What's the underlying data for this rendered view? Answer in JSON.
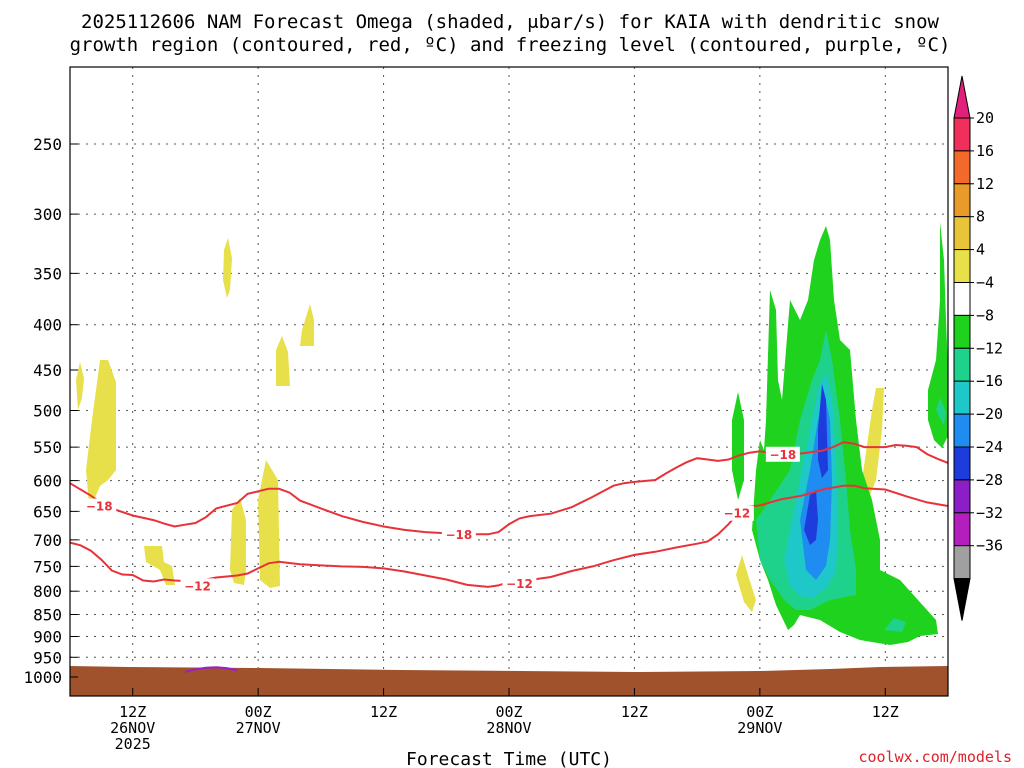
{
  "title": {
    "line1": "2025112606 NAM Forecast Omega (shaded, μbar/s) for KAIA with dendritic snow",
    "line2": "growth region (contoured, red, ºC) and freezing level (contoured, purple, ºC)"
  },
  "credit": "coolwx.com/models",
  "chart_data": {
    "type": "heatmap",
    "title": "2025112606 NAM Forecast Omega (shaded, μbar/s) for KAIA with dendritic snow growth region (contoured, red, ºC) and freezing level (contoured, purple, ºC)",
    "xlabel": "Forecast Time (UTC)",
    "ylabel": "",
    "y_scale": "log-pressure, inverted",
    "ylim": [
      1000,
      200
    ],
    "y_ticks": [
      250,
      300,
      350,
      400,
      450,
      500,
      550,
      600,
      650,
      700,
      750,
      800,
      850,
      900,
      950,
      1000
    ],
    "x_hours_range": [
      0,
      84
    ],
    "x_ticks": [
      {
        "hour": 6,
        "lines": [
          "12Z",
          "26NOV",
          "2025"
        ]
      },
      {
        "hour": 18,
        "lines": [
          "00Z",
          "27NOV"
        ]
      },
      {
        "hour": 30,
        "lines": [
          "12Z"
        ]
      },
      {
        "hour": 42,
        "lines": [
          "00Z",
          "28NOV"
        ]
      },
      {
        "hour": 54,
        "lines": [
          "12Z"
        ]
      },
      {
        "hour": 66,
        "lines": [
          "00Z",
          "29NOV"
        ]
      },
      {
        "hour": 78,
        "lines": [
          "12Z"
        ]
      }
    ],
    "grid": true,
    "colorbar": {
      "labels": [
        "20",
        "16",
        "12",
        "8",
        "4",
        "−4",
        "−8",
        "−12",
        "−16",
        "−20",
        "−24",
        "−28",
        "−32",
        "−36"
      ],
      "colors": [
        "#f0305a",
        "#f26a2a",
        "#e89a2a",
        "#e8c43a",
        "#e8e04a",
        "#ffffff",
        "#1ed21e",
        "#1ed28c",
        "#1ec8c8",
        "#1e8cf0",
        "#1e3cdc",
        "#8c1ec8",
        "#b41ebe",
        "#a0a0a0"
      ],
      "top_arrow_color": "#e0207a",
      "bottom_arrow_color": "#000000"
    },
    "contours": [
      {
        "name": "-18",
        "color": "#e8323a",
        "points": [
          [
            0,
            604
          ],
          [
            2,
            624
          ],
          [
            3,
            636
          ],
          [
            4,
            645
          ],
          [
            6,
            657
          ],
          [
            8,
            665
          ],
          [
            9,
            671
          ],
          [
            10,
            676
          ],
          [
            11,
            673
          ],
          [
            12,
            670
          ],
          [
            13,
            660
          ],
          [
            14,
            645
          ],
          [
            16,
            636
          ],
          [
            17,
            621
          ],
          [
            18,
            617
          ],
          [
            19,
            613
          ],
          [
            20,
            613
          ],
          [
            21,
            619
          ],
          [
            22,
            632
          ],
          [
            24,
            645
          ],
          [
            26,
            658
          ],
          [
            28,
            668
          ],
          [
            30,
            676
          ],
          [
            32,
            682
          ],
          [
            34,
            686
          ],
          [
            36,
            688
          ],
          [
            38,
            690
          ],
          [
            40,
            690
          ],
          [
            41,
            686
          ],
          [
            42,
            672
          ],
          [
            43,
            662
          ],
          [
            44,
            658
          ],
          [
            46,
            654
          ],
          [
            48,
            643
          ],
          [
            50,
            626
          ],
          [
            52,
            608
          ],
          [
            53,
            604
          ],
          [
            54,
            602
          ],
          [
            56,
            599
          ],
          [
            57,
            589
          ],
          [
            58,
            580
          ],
          [
            59,
            572
          ],
          [
            60,
            566
          ],
          [
            61,
            568
          ],
          [
            62,
            570
          ],
          [
            63,
            568
          ],
          [
            64,
            562
          ],
          [
            65,
            558
          ],
          [
            66,
            556
          ],
          [
            67,
            558
          ],
          [
            68,
            560
          ],
          [
            70,
            559
          ],
          [
            72,
            555
          ],
          [
            73,
            550
          ],
          [
            74,
            543
          ],
          [
            75,
            545
          ],
          [
            76,
            550
          ],
          [
            78,
            550
          ],
          [
            79,
            547
          ],
          [
            80,
            548
          ],
          [
            81,
            550
          ],
          [
            82,
            560
          ],
          [
            83,
            567
          ],
          [
            84,
            573
          ]
        ],
        "label_positions": [
          [
            2.8,
            642
          ],
          [
            37.2,
            691
          ],
          [
            68.2,
            561
          ]
        ]
      },
      {
        "name": "-12",
        "color": "#e8323a",
        "points": [
          [
            0,
            705
          ],
          [
            1,
            710
          ],
          [
            2,
            720
          ],
          [
            3,
            737
          ],
          [
            4,
            758
          ],
          [
            5,
            766
          ],
          [
            6,
            767
          ],
          [
            7,
            778
          ],
          [
            8,
            780
          ],
          [
            9,
            776
          ],
          [
            10,
            778
          ],
          [
            11,
            779
          ],
          [
            12,
            779
          ],
          [
            13,
            776
          ],
          [
            14,
            772
          ],
          [
            16,
            768
          ],
          [
            17,
            764
          ],
          [
            18,
            754
          ],
          [
            19,
            744
          ],
          [
            20,
            741
          ],
          [
            22,
            746
          ],
          [
            24,
            748
          ],
          [
            26,
            750
          ],
          [
            28,
            751
          ],
          [
            30,
            754
          ],
          [
            32,
            760
          ],
          [
            34,
            768
          ],
          [
            36,
            776
          ],
          [
            38,
            787
          ],
          [
            40,
            791
          ],
          [
            41,
            788
          ],
          [
            42,
            781
          ],
          [
            44,
            777
          ],
          [
            46,
            771
          ],
          [
            48,
            759
          ],
          [
            50,
            750
          ],
          [
            52,
            738
          ],
          [
            54,
            728
          ],
          [
            56,
            722
          ],
          [
            58,
            714
          ],
          [
            60,
            707
          ],
          [
            61,
            703
          ],
          [
            62,
            690
          ],
          [
            63,
            672
          ],
          [
            64,
            651
          ],
          [
            65,
            642
          ],
          [
            66,
            640
          ],
          [
            68,
            630
          ],
          [
            70,
            624
          ],
          [
            72,
            614
          ],
          [
            74,
            608
          ],
          [
            75,
            608
          ],
          [
            76,
            612
          ],
          [
            78,
            614
          ],
          [
            80,
            625
          ],
          [
            82,
            635
          ],
          [
            84,
            641
          ]
        ],
        "label_positions": [
          [
            12.2,
            790
          ],
          [
            43.0,
            785
          ],
          [
            63.8,
            654
          ]
        ]
      },
      {
        "name": "freezing level",
        "color": "#9b1ec8",
        "points": [
          [
            11,
            987
          ],
          [
            12,
            980
          ],
          [
            13,
            976
          ],
          [
            14,
            975
          ],
          [
            15,
            977
          ],
          [
            16,
            983
          ]
        ],
        "label_positions": []
      }
    ],
    "shaded_regions": [
      {
        "level": "4 to 8",
        "color": "#e8e04a",
        "count_approx": 14
      },
      {
        "level": "-4 to -8",
        "color": "#1ed21e"
      },
      {
        "level": "-8 to -12",
        "color": "#1ed28c"
      },
      {
        "level": "-12 to -16",
        "color": "#1ec8c8"
      },
      {
        "level": "-16 to -20",
        "color": "#1e8cf0"
      },
      {
        "level": "-20 to -24",
        "color": "#1e3cdc"
      }
    ],
    "surface_color": "#a0522d"
  }
}
